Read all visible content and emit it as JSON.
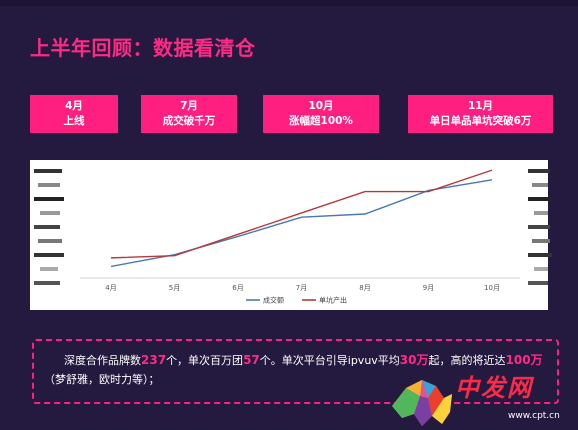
{
  "page": {
    "title": "上半年回顾：数据看清仓"
  },
  "milestones": [
    {
      "month": "4月",
      "text": "上线"
    },
    {
      "month": "7月",
      "text": "成交破千万"
    },
    {
      "month": "10月",
      "text": "涨幅超100%"
    },
    {
      "month": "11月",
      "text": "单日单品单坑突破6万"
    }
  ],
  "chart_data": {
    "type": "line",
    "x": [
      "4月",
      "5月",
      "6月",
      "7月",
      "8月",
      "9月",
      "10月"
    ],
    "ylim": [
      0,
      10
    ],
    "grid": false,
    "legend": "bottom",
    "series": [
      {
        "name": "成交额",
        "color": "#4a78b5",
        "values": [
          0.8,
          1.9,
          3.6,
          5.4,
          5.7,
          7.9,
          8.9
        ]
      },
      {
        "name": "单坑产出",
        "color": "#b53a3a",
        "values": [
          1.6,
          1.8,
          3.8,
          5.8,
          7.8,
          7.8,
          9.8
        ]
      }
    ]
  },
  "summary": {
    "p1": "深度合作品牌数",
    "brands": "237",
    "p2": "个，单次百万团",
    "groups": "57",
    "p3": "个。单次平台引导ipvuv平均",
    "avg": "30万",
    "p4": "起，高的将近达",
    "max": "100万",
    "p5": "（梦舒雅，欧时力等）；"
  },
  "logo": {
    "text": "中发网",
    "url": "www.cpt.cn"
  }
}
